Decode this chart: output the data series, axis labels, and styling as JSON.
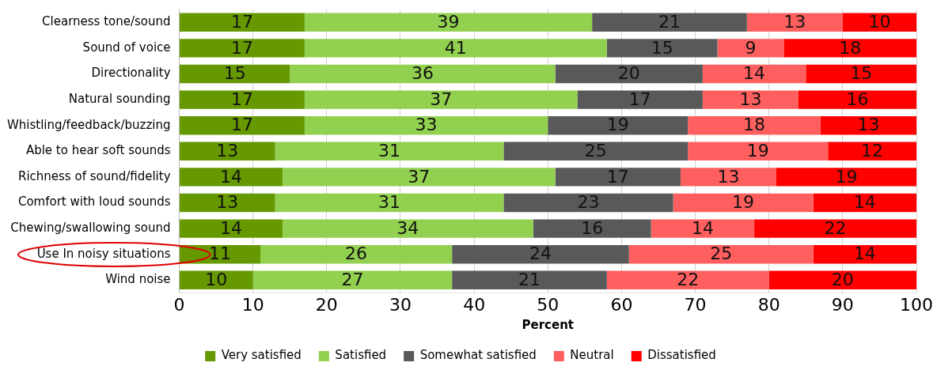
{
  "chart_data": {
    "type": "bar",
    "orientation": "horizontal",
    "stacked": true,
    "xlabel": "Percent",
    "categories": [
      "Clearness tone/sound",
      "Sound of voice",
      "Directionality",
      "Natural sounding",
      "Whistling/feedback/buzzing",
      "Able to hear soft sounds",
      "Richness of sound/fidelity",
      "Comfort with loud sounds",
      "Chewing/swallowing sound",
      "Use In noisy situations",
      "Wind noise"
    ],
    "series": [
      {
        "name": "Very satisfied",
        "color": "#669900",
        "values": [
          17,
          17,
          15,
          17,
          17,
          13,
          14,
          13,
          14,
          11,
          10
        ]
      },
      {
        "name": "Satisfied",
        "color": "#92d050",
        "values": [
          39,
          41,
          36,
          37,
          33,
          31,
          37,
          31,
          34,
          26,
          27
        ]
      },
      {
        "name": "Somewhat satisfied",
        "color": "#595959",
        "values": [
          21,
          15,
          20,
          17,
          19,
          25,
          17,
          23,
          16,
          24,
          21
        ]
      },
      {
        "name": "Neutral",
        "color": "#ff5f5f",
        "values": [
          13,
          9,
          14,
          13,
          18,
          19,
          13,
          19,
          14,
          25,
          22
        ]
      },
      {
        "name": "Dissatisfied",
        "color": "#ff0000",
        "values": [
          10,
          18,
          15,
          16,
          13,
          12,
          19,
          14,
          22,
          14,
          20
        ]
      }
    ],
    "xlim": [
      0,
      100
    ],
    "xticks": [
      0,
      10,
      20,
      30,
      40,
      50,
      60,
      70,
      80,
      90,
      100
    ],
    "grid": "x",
    "legend": "bottom",
    "data_labels": true
  }
}
